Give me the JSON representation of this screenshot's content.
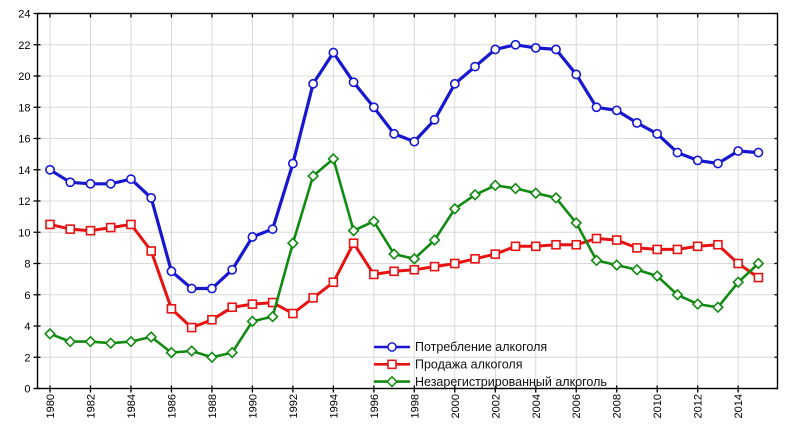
{
  "chart_data": {
    "type": "line",
    "title": "",
    "xlabel": "",
    "ylabel": "",
    "grid": true,
    "legend_position": "bottom-center-inside",
    "ylim": [
      0,
      24
    ],
    "y_tick_step": 2,
    "x": [
      1980,
      1981,
      1982,
      1983,
      1984,
      1985,
      1986,
      1987,
      1988,
      1989,
      1990,
      1991,
      1992,
      1993,
      1994,
      1995,
      1996,
      1997,
      1998,
      1999,
      2000,
      2001,
      2002,
      2003,
      2004,
      2005,
      2006,
      2007,
      2008,
      2009,
      2010,
      2011,
      2012,
      2013,
      2014,
      2015
    ],
    "x_tick_labels": [
      "1980",
      "1982",
      "1984",
      "1986",
      "1988",
      "1990",
      "1992",
      "1994",
      "1996",
      "1998",
      "2000",
      "2002",
      "2004",
      "2006",
      "2008",
      "2010",
      "2012",
      "2014"
    ],
    "series": [
      {
        "key": "consumption",
        "name": "Потребление алкоголя",
        "marker": "circle",
        "color": "#1717d2",
        "values": [
          14.0,
          13.2,
          13.1,
          13.1,
          13.4,
          12.2,
          7.5,
          6.4,
          6.4,
          7.6,
          9.7,
          10.2,
          14.4,
          19.5,
          21.5,
          19.6,
          18.0,
          16.3,
          15.8,
          17.2,
          19.5,
          20.6,
          21.7,
          22.0,
          21.8,
          21.7,
          20.1,
          18.0,
          17.8,
          17.0,
          16.3,
          15.1,
          14.6,
          14.4,
          15.2,
          15.1
        ]
      },
      {
        "key": "sales",
        "name": "Продажа алкоголя",
        "marker": "square",
        "color": "#e81111",
        "values": [
          10.5,
          10.2,
          10.1,
          10.3,
          10.5,
          8.8,
          5.1,
          3.9,
          4.4,
          5.2,
          5.4,
          5.5,
          4.8,
          5.8,
          6.8,
          9.3,
          7.3,
          7.5,
          7.6,
          7.8,
          8.0,
          8.3,
          8.6,
          9.1,
          9.1,
          9.2,
          9.2,
          9.6,
          9.5,
          9.0,
          8.9,
          8.9,
          9.1,
          9.2,
          8.0,
          7.1
        ]
      },
      {
        "key": "unregistered",
        "name": "Незарегистрированный алкоголь",
        "marker": "diamond",
        "color": "#108a10",
        "values": [
          3.5,
          3.0,
          3.0,
          2.9,
          3.0,
          3.3,
          2.3,
          2.4,
          2.0,
          2.3,
          4.3,
          4.6,
          9.3,
          13.6,
          14.7,
          10.1,
          10.7,
          8.6,
          8.3,
          9.5,
          11.5,
          12.4,
          13.0,
          12.8,
          12.5,
          12.2,
          10.6,
          8.2,
          7.9,
          7.6,
          7.2,
          6.0,
          5.4,
          5.2,
          6.8,
          8.0
        ]
      }
    ],
    "colors": {
      "background": "#ffffff",
      "grid": "#d8d8d8",
      "axis": "#000000"
    }
  }
}
